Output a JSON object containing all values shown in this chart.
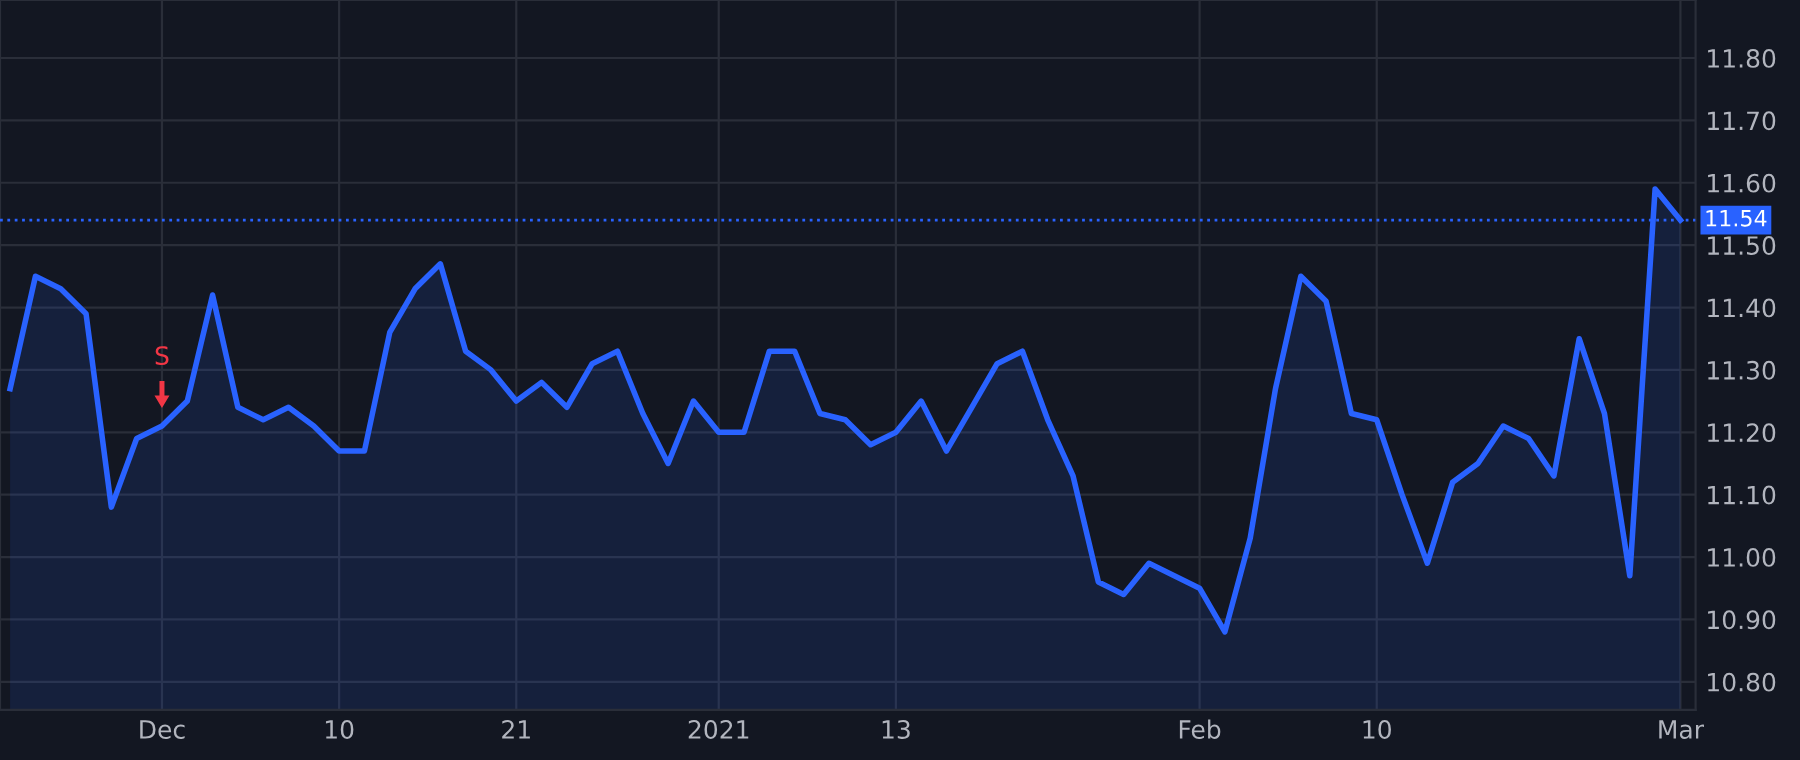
{
  "chart_data": {
    "type": "area",
    "categories": [
      null,
      null,
      null,
      null,
      null,
      null,
      "Dec",
      null,
      null,
      null,
      null,
      null,
      null,
      "10",
      null,
      null,
      null,
      null,
      null,
      null,
      "21",
      null,
      null,
      null,
      null,
      null,
      null,
      null,
      "2021",
      null,
      null,
      null,
      null,
      null,
      null,
      "13",
      null,
      null,
      null,
      null,
      null,
      null,
      null,
      null,
      null,
      null,
      null,
      "Feb",
      null,
      null,
      null,
      null,
      null,
      null,
      "10",
      null,
      null,
      null,
      null,
      null,
      null,
      null,
      null,
      null,
      null,
      null,
      "Mar"
    ],
    "series": [
      {
        "color": "#2962ff",
        "values": [
          11.27,
          11.45,
          11.43,
          11.39,
          11.08,
          11.19,
          11.21,
          11.25,
          11.42,
          11.24,
          11.22,
          11.24,
          11.21,
          11.17,
          11.17,
          11.36,
          11.43,
          11.47,
          11.33,
          11.3,
          11.25,
          11.28,
          11.24,
          11.31,
          11.33,
          11.23,
          11.15,
          11.25,
          11.2,
          11.2,
          11.33,
          11.33,
          11.23,
          11.22,
          11.18,
          11.2,
          11.25,
          11.17,
          11.24,
          11.31,
          11.33,
          11.22,
          11.13,
          10.96,
          10.94,
          10.99,
          10.97,
          10.95,
          10.88,
          11.03,
          11.27,
          11.45,
          11.41,
          11.23,
          11.22,
          11.1,
          10.99,
          11.12,
          11.15,
          11.21,
          11.19,
          11.13,
          11.35,
          11.23,
          10.97,
          11.59,
          11.54
        ]
      }
    ],
    "ylim": [
      10.755,
      11.893
    ],
    "yticks": [
      {
        "value": 10.8,
        "label": "10.80"
      },
      {
        "value": 10.9,
        "label": "10.90"
      },
      {
        "value": 11.0,
        "label": "11.00"
      },
      {
        "value": 11.1,
        "label": "11.10"
      },
      {
        "value": 11.2,
        "label": "11.20"
      },
      {
        "value": 11.3,
        "label": "11.30"
      },
      {
        "value": 11.4,
        "label": "11.40"
      },
      {
        "value": 11.5,
        "label": "11.50"
      },
      {
        "value": 11.6,
        "label": "11.60"
      },
      {
        "value": 11.7,
        "label": "11.70"
      },
      {
        "value": 11.8,
        "label": "11.80"
      }
    ],
    "ref_lines": [
      {
        "axis": "y",
        "value": 11.54,
        "label": "11.54",
        "color": "#2962ff",
        "line_style": "dotted"
      }
    ],
    "annotations": [
      {
        "text": "S",
        "y": 11.21
      }
    ],
    "grid": true,
    "legend": false
  }
}
